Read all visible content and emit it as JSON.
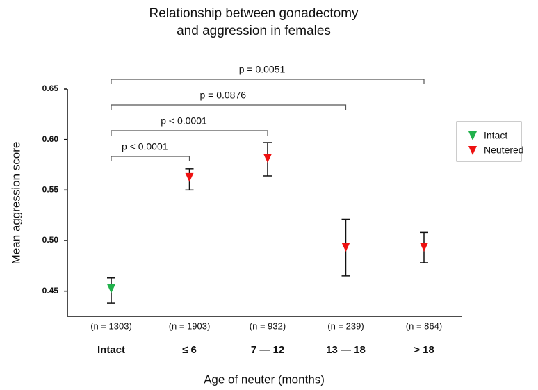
{
  "chart_data": {
    "type": "errorpoint",
    "title": [
      "Relationship between gonadectomy",
      "and aggression in females"
    ],
    "x_label": "Age of neuter (months)",
    "y_label": "Mean aggression score",
    "categories": [
      "Intact",
      "≤ 6",
      "7 — 12",
      "13 — 18",
      "> 18"
    ],
    "n_labels": [
      "(n = 1303)",
      "(n = 1903)",
      "(n = 932)",
      "(n = 239)",
      "(n = 864)"
    ],
    "ylim": [
      0.425,
      0.65
    ],
    "yticks": [
      0.45,
      {
        "value": 0.5,
        "label": "0.50"
      },
      0.55,
      {
        "value": 0.6,
        "label": "0.60"
      },
      0.65
    ],
    "series": [
      {
        "name": "Intact",
        "color": "#22b14c",
        "values": [
          0.452,
          null,
          null,
          null,
          null
        ],
        "lower": [
          0.438,
          null,
          null,
          null,
          null
        ],
        "upper": [
          0.463,
          null,
          null,
          null,
          null
        ]
      },
      {
        "name": "Neutered",
        "color": "#ee1111",
        "values": [
          null,
          0.562,
          0.581,
          0.493,
          0.493
        ],
        "lower": [
          null,
          0.55,
          0.564,
          0.465,
          0.478
        ],
        "upper": [
          null,
          0.571,
          0.597,
          0.521,
          0.508
        ]
      }
    ],
    "annotations": [
      {
        "from": 0,
        "to": 1,
        "label": "p < 0.0001"
      },
      {
        "from": 0,
        "to": 2,
        "label": "p < 0.0001"
      },
      {
        "from": 0,
        "to": 3,
        "label": "p = 0.0876"
      },
      {
        "from": 0,
        "to": 4,
        "label": "p = 0.0051"
      }
    ],
    "legend": "right"
  }
}
